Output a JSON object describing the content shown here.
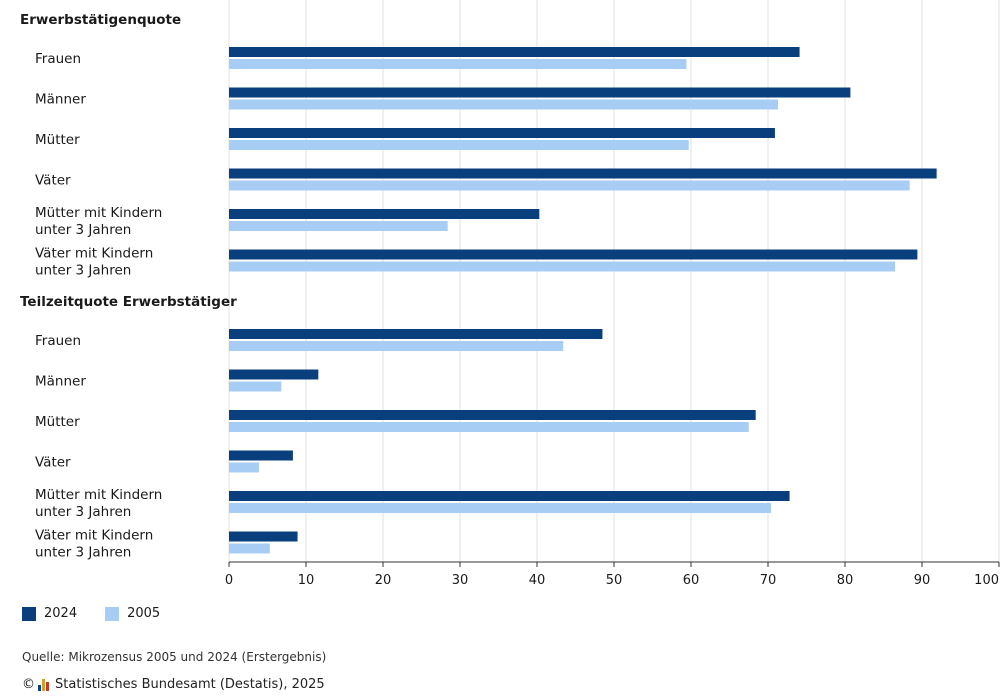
{
  "chart_data": {
    "type": "bar",
    "orientation": "horizontal",
    "xlim": [
      0,
      100
    ],
    "xticks": [
      "0",
      "10",
      "20",
      "30",
      "40",
      "50",
      "60",
      "70",
      "80",
      "90",
      "100"
    ],
    "grid": true,
    "legend_position": "bottom-left",
    "series": [
      {
        "name": "2024",
        "color": "#0a3f7e"
      },
      {
        "name": "2005",
        "color": "#a7cdf5"
      }
    ],
    "groups": [
      {
        "title": "Erwerbstätigenquote",
        "categories": [
          {
            "label": [
              "Frauen"
            ],
            "values": [
              74.1,
              59.4
            ]
          },
          {
            "label": [
              "Männer"
            ],
            "values": [
              80.7,
              71.3
            ]
          },
          {
            "label": [
              "Mütter"
            ],
            "values": [
              70.9,
              59.7
            ]
          },
          {
            "label": [
              "Väter"
            ],
            "values": [
              91.9,
              88.4
            ]
          },
          {
            "label": [
              "Mütter mit Kindern",
              "unter 3 Jahren"
            ],
            "values": [
              40.3,
              28.4
            ]
          },
          {
            "label": [
              "Väter mit Kindern",
              "unter 3 Jahren"
            ],
            "values": [
              89.4,
              86.5
            ]
          }
        ]
      },
      {
        "title": "Teilzeitquote Erwerbstätiger",
        "categories": [
          {
            "label": [
              "Frauen"
            ],
            "values": [
              48.5,
              43.4
            ]
          },
          {
            "label": [
              "Männer"
            ],
            "values": [
              11.6,
              6.8
            ]
          },
          {
            "label": [
              "Mütter"
            ],
            "values": [
              68.4,
              67.5
            ]
          },
          {
            "label": [
              "Väter"
            ],
            "values": [
              8.3,
              3.9
            ]
          },
          {
            "label": [
              "Mütter mit Kindern",
              "unter 3 Jahren"
            ],
            "values": [
              72.8,
              70.4
            ]
          },
          {
            "label": [
              "Väter mit Kindern",
              "unter 3 Jahren"
            ],
            "values": [
              8.9,
              5.3
            ]
          }
        ]
      }
    ]
  },
  "legend": {
    "label_2024": "2024",
    "label_2005": "2005",
    "color_2024": "#0a3f7e",
    "color_2005": "#a7cdf5"
  },
  "source": "Quelle: Mikrozensus 2005 und 2024 (Erstergebnis)",
  "footer": {
    "copyright": "©",
    "publisher": "Statistisches Bundesamt (Destatis), 2025"
  }
}
